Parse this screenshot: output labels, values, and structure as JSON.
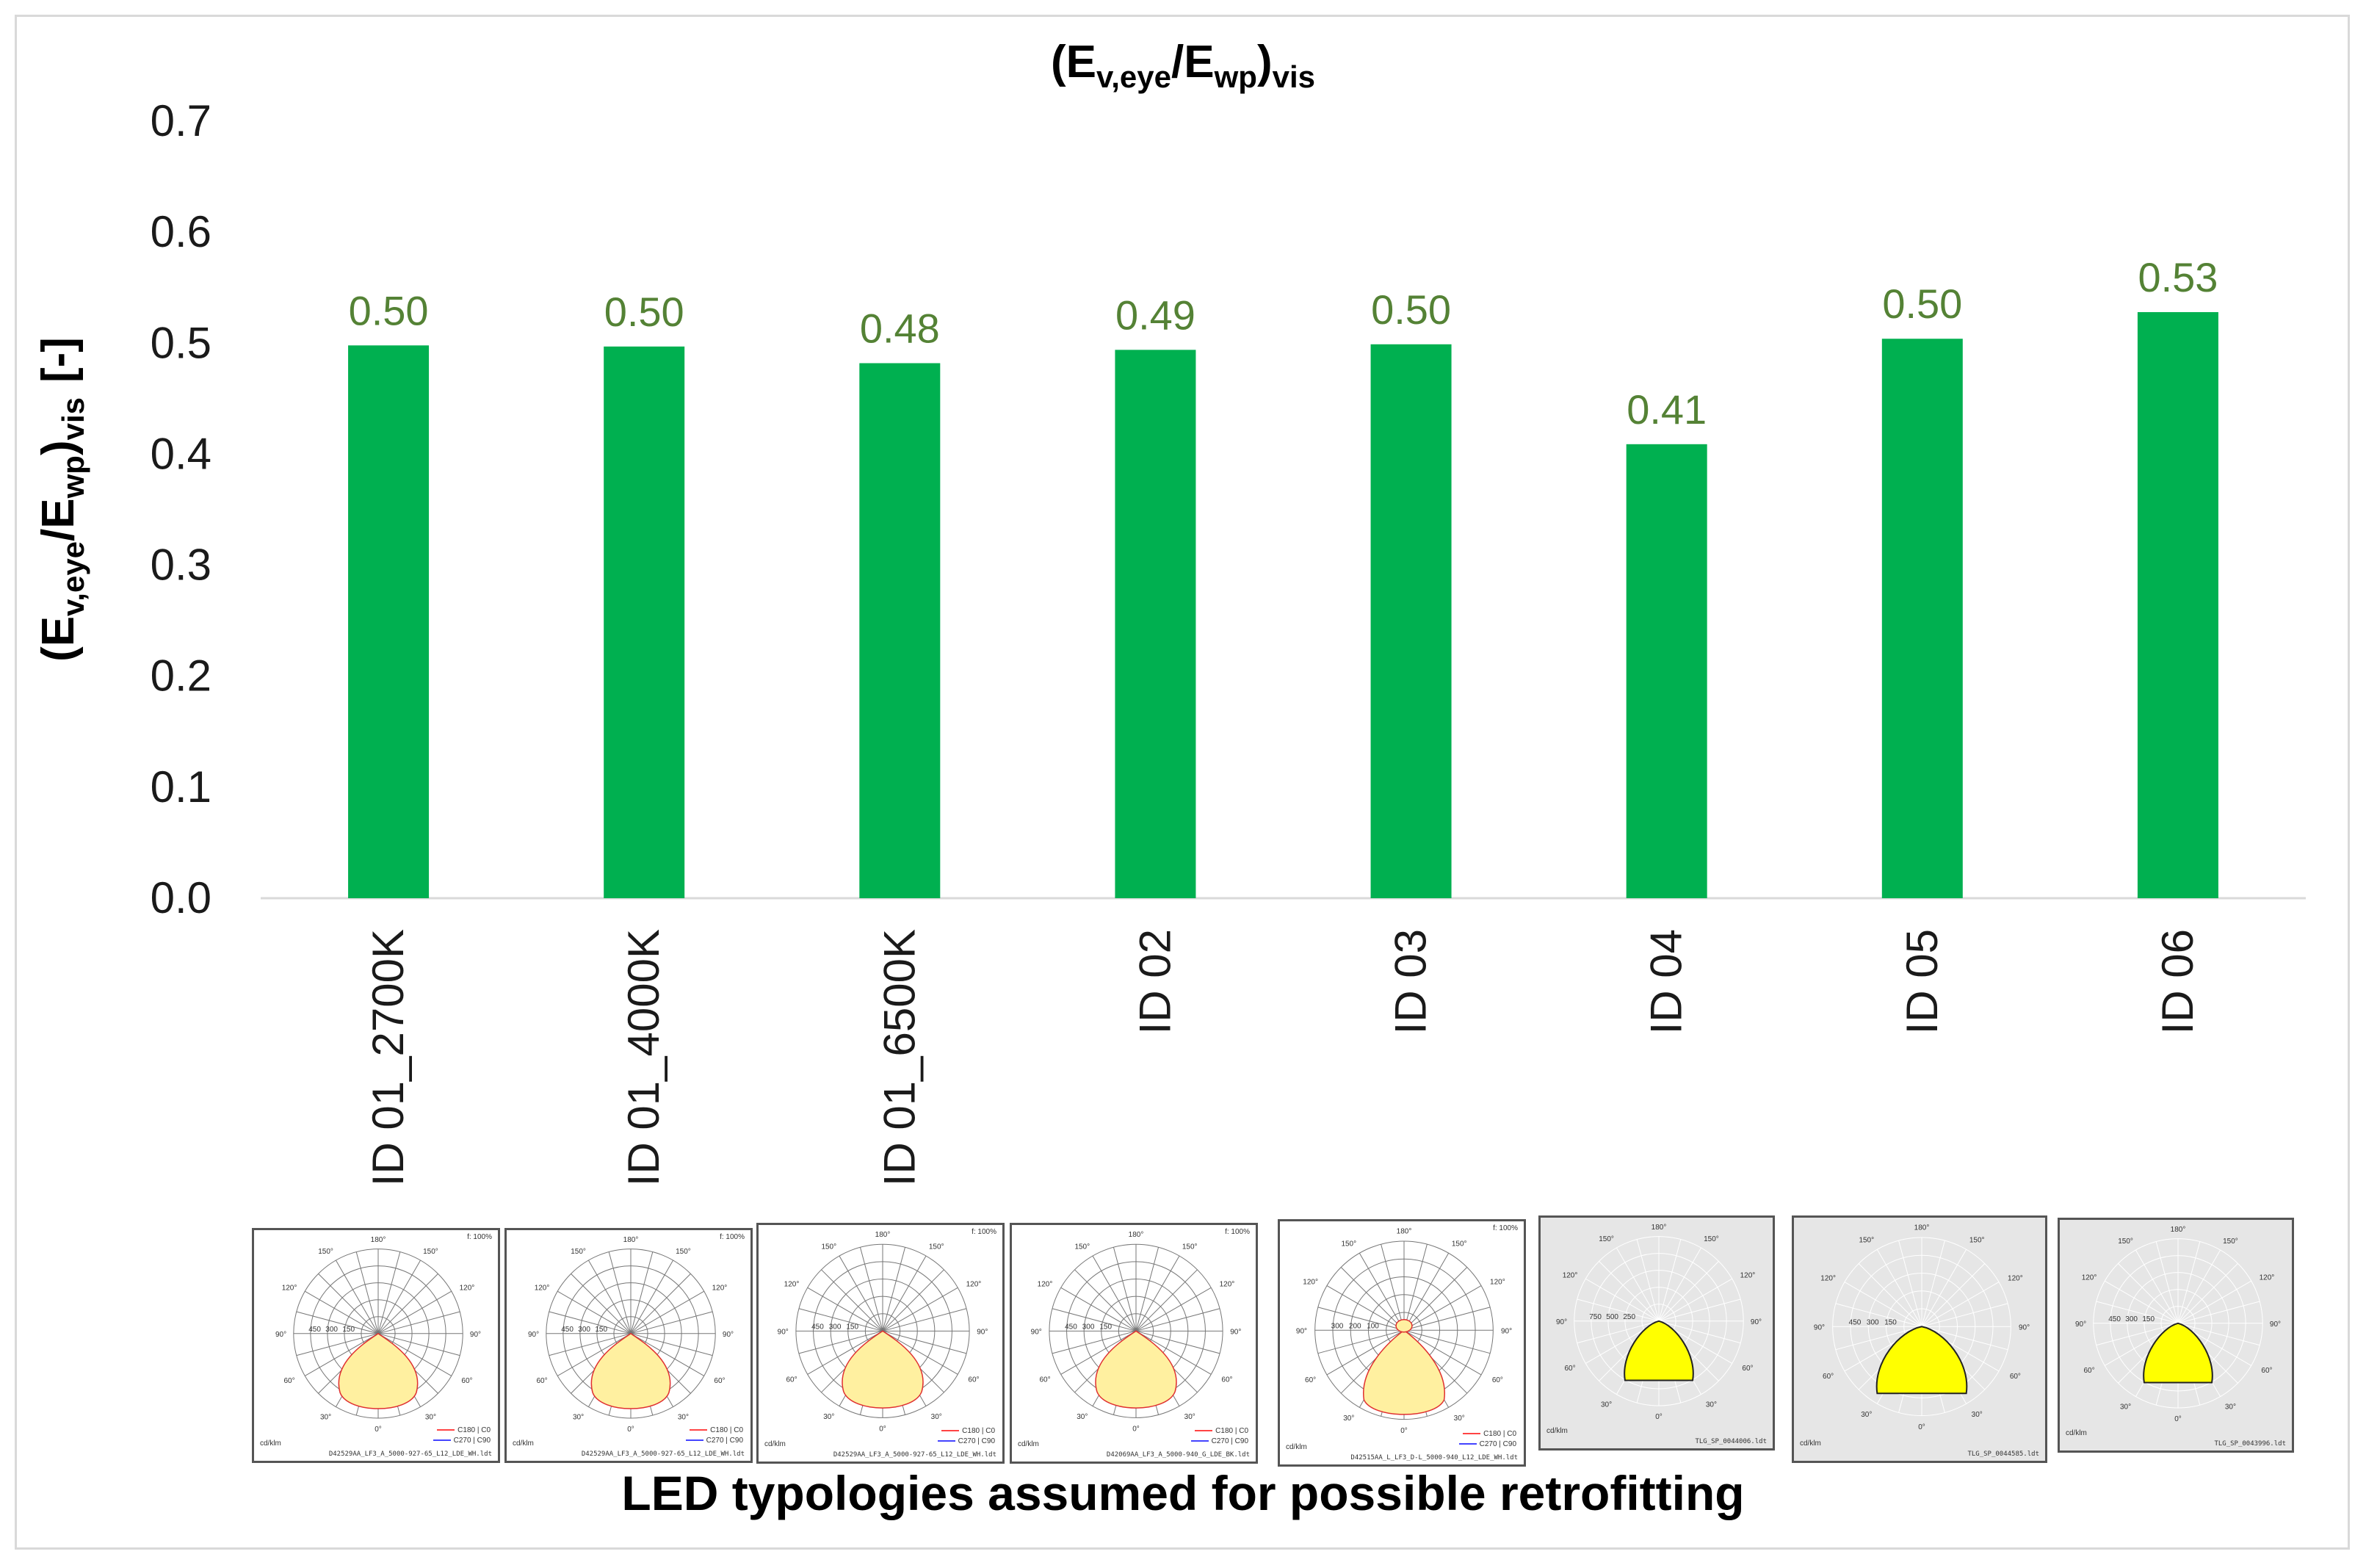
{
  "chart_data": {
    "type": "bar",
    "title_main": "(E",
    "title_sub1": "v,eye",
    "title_mid": "/E",
    "title_sub2": "wp",
    "title_end": ")",
    "title_sub3": "vis",
    "ylabel_main": "(E",
    "ylabel_sub1": "v,eye",
    "ylabel_mid": "/E",
    "ylabel_sub2": "wp",
    "ylabel_end": ")",
    "ylabel_sub3": "vis",
    "ylabel_unit": "[-]",
    "xlabel": "LED typologies assumed for possible retrofitting",
    "ylim": [
      0,
      0.7
    ],
    "yticks": [
      "0.0",
      "0.1",
      "0.2",
      "0.3",
      "0.4",
      "0.5",
      "0.6",
      "0.7"
    ],
    "categories": [
      "ID 01_2700K",
      "ID 01_4000K",
      "ID 01_6500K",
      "ID 02",
      "ID 03",
      "ID 04",
      "ID 05",
      "ID 06"
    ],
    "values": [
      0.498,
      0.497,
      0.482,
      0.494,
      0.499,
      0.409,
      0.504,
      0.528
    ],
    "labels": [
      "0.50",
      "0.50",
      "0.48",
      "0.49",
      "0.50",
      "0.41",
      "0.50",
      "0.53"
    ],
    "bar_color": "#00b050",
    "label_color": "#548235"
  },
  "panels": [
    {
      "style": "white",
      "caption": "D42529AA_LF3_A_5000-927-65_L12_LDE_WH.ldt",
      "unit": "cd/klm",
      "pct": "f: 100%",
      "legend": [
        "C180 | C0",
        "C270 | C90"
      ],
      "rings": [
        "450",
        "300",
        "150"
      ]
    },
    {
      "style": "white",
      "caption": "D42529AA_LF3_A_5000-927-65_L12_LDE_WH.ldt",
      "unit": "cd/klm",
      "pct": "f: 100%",
      "legend": [
        "C180 | C0",
        "C270 | C90"
      ],
      "rings": [
        "450",
        "300",
        "150"
      ]
    },
    {
      "style": "white",
      "caption": "D42529AA_LF3_A_5000-927-65_L12_LDE_WH.ldt",
      "unit": "cd/klm",
      "pct": "f: 100%",
      "legend": [
        "C180 | C0",
        "C270 | C90"
      ],
      "rings": [
        "450",
        "300",
        "150"
      ]
    },
    {
      "style": "white",
      "caption": "D42069AA_LF3_A_5000-940_G_LDE_BK.ldt",
      "unit": "cd/klm",
      "pct": "f: 100%",
      "legend": [
        "C180 | C0",
        "C270 | C90"
      ],
      "rings": [
        "450",
        "300",
        "150"
      ]
    },
    {
      "style": "white",
      "caption": "D42515AA_L_LF3_D-L_5000-940_L12_LDE_WH.ldt",
      "unit": "cd/klm",
      "pct": "f: 100%",
      "legend": [
        "C180 | C0",
        "C270 | C90"
      ],
      "rings": [
        "300",
        "200",
        "100"
      ]
    },
    {
      "style": "gray",
      "caption": "TLG_SP_0044006.ldt",
      "unit": "cd/klm",
      "pct": "",
      "legend": [],
      "rings": [
        "750",
        "500",
        "250"
      ]
    },
    {
      "style": "gray",
      "caption": "TLG_SP_0044585.ldt",
      "unit": "cd/klm",
      "pct": "",
      "legend": [],
      "rings": [
        "450",
        "300",
        "150"
      ]
    },
    {
      "style": "gray",
      "caption": "TLG_SP_0043996.ldt",
      "unit": "cd/klm",
      "pct": "",
      "legend": [],
      "rings": [
        "450",
        "300",
        "150"
      ]
    }
  ],
  "angle_labels": [
    "180°",
    "150°",
    "150°",
    "120°",
    "120°",
    "90°",
    "90°",
    "60°",
    "60°",
    "30°",
    "30°",
    "0°"
  ]
}
